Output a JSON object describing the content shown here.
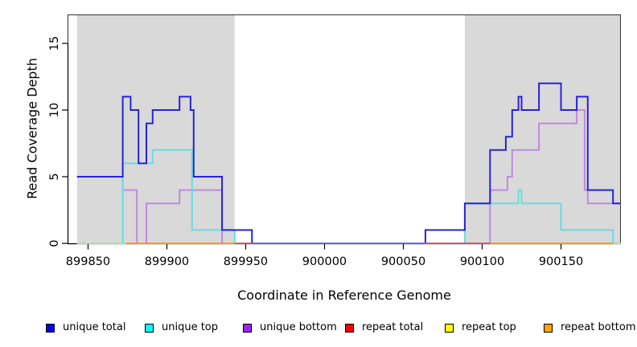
{
  "figure": {
    "xlabel": "Coordinate in Reference Genome",
    "ylabel": "Read Coverage Depth"
  },
  "legend": {
    "items": [
      {
        "label": "unique total",
        "color": "#0000ee"
      },
      {
        "label": "unique top",
        "color": "#00ffff"
      },
      {
        "label": "unique bottom",
        "color": "#a020f0"
      },
      {
        "label": "repeat total",
        "color": "#ff0000"
      },
      {
        "label": "repeat top",
        "color": "#ffff00"
      },
      {
        "label": "repeat bottom",
        "color": "#ffa500"
      }
    ]
  },
  "chart_data": {
    "type": "line",
    "step": true,
    "title": "",
    "xlabel": "Coordinate in Reference Genome",
    "ylabel": "Read Coverage Depth",
    "xlim": [
      899837,
      900188
    ],
    "ylim": [
      0,
      17.17
    ],
    "grid": false,
    "band_color": "#d9d9d9",
    "shaded_regions": [
      {
        "from": 899843,
        "to": 899943
      },
      {
        "from": 900089,
        "to": 900188
      }
    ],
    "xticks": [
      {
        "value": 899850,
        "label": "899850"
      },
      {
        "value": 899900,
        "label": "899900"
      },
      {
        "value": 899950,
        "label": "899950"
      },
      {
        "value": 900000,
        "label": "900000"
      },
      {
        "value": 900050,
        "label": "900050"
      },
      {
        "value": 900100,
        "label": "900100"
      },
      {
        "value": 900150,
        "label": "900150"
      }
    ],
    "yticks": [
      {
        "value": 0,
        "label": "0"
      },
      {
        "value": 5,
        "label": "5"
      },
      {
        "value": 10,
        "label": "10"
      },
      {
        "value": 15,
        "label": "15"
      }
    ],
    "series": [
      {
        "name": "repeat total",
        "line_color": "#d65072",
        "points": [
          [
            899843,
            0
          ]
        ]
      },
      {
        "name": "repeat top",
        "line_color": "#f2ef55",
        "points": [
          [
            899843,
            0
          ]
        ]
      },
      {
        "name": "repeat bottom",
        "line_color": "#ff9715",
        "points": [
          [
            899843,
            0
          ]
        ]
      },
      {
        "name": "unique bottom",
        "line_color": "#c089e2",
        "points": [
          [
            899843,
            5
          ],
          [
            899872,
            4
          ],
          [
            899881,
            0
          ],
          [
            899887,
            3
          ],
          [
            899908,
            4
          ],
          [
            899935,
            0
          ],
          [
            900105,
            4
          ],
          [
            900116,
            5
          ],
          [
            900119,
            7
          ],
          [
            900136,
            9
          ],
          [
            900160,
            10
          ],
          [
            900165,
            4
          ],
          [
            900167,
            3
          ]
        ]
      },
      {
        "name": "unique top",
        "line_color": "#63dee5",
        "points": [
          [
            899843,
            0
          ],
          [
            899872,
            6
          ],
          [
            899891,
            7
          ],
          [
            899916,
            1
          ],
          [
            899943,
            0
          ],
          [
            900089,
            3
          ],
          [
            900123,
            4
          ],
          [
            900125,
            3
          ],
          [
            900150,
            1
          ],
          [
            900183,
            0
          ]
        ]
      },
      {
        "name": "unique total",
        "line_color": "#2822d8",
        "points": [
          [
            899843,
            5
          ],
          [
            899872,
            11
          ],
          [
            899877,
            10
          ],
          [
            899882,
            6
          ],
          [
            899887,
            9
          ],
          [
            899891,
            10
          ],
          [
            899908,
            11
          ],
          [
            899915,
            10
          ],
          [
            899917,
            5
          ],
          [
            899935,
            1
          ],
          [
            899954,
            0
          ],
          [
            900064,
            1
          ],
          [
            900089,
            3
          ],
          [
            900105,
            7
          ],
          [
            900115,
            8
          ],
          [
            900119,
            10
          ],
          [
            900123,
            11
          ],
          [
            900125,
            10
          ],
          [
            900136,
            12
          ],
          [
            900150,
            10
          ],
          [
            900160,
            11
          ],
          [
            900167,
            4
          ],
          [
            900183,
            3
          ]
        ]
      }
    ],
    "baseline_segments": [
      {
        "from": 899843,
        "to": 899874,
        "color": "#a8dfa9"
      },
      {
        "from": 899874,
        "to": 899943,
        "color": "#ff9715"
      },
      {
        "from": 899943,
        "to": 899954,
        "color": "#d65072"
      },
      {
        "from": 899954,
        "to": 900064,
        "color": "#6a62dd"
      },
      {
        "from": 900064,
        "to": 900105,
        "color": "#d65072"
      },
      {
        "from": 900105,
        "to": 900183,
        "color": "#ff9715"
      },
      {
        "from": 900183,
        "to": 900188,
        "color": "#a8dfa9"
      }
    ]
  }
}
